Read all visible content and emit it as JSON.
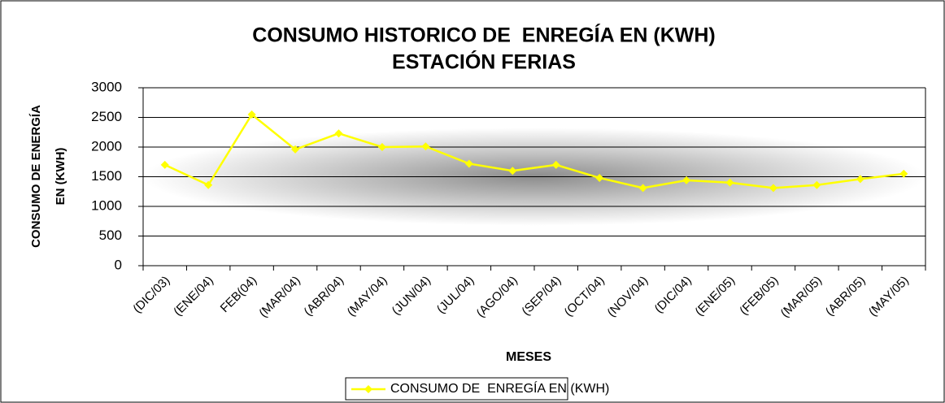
{
  "chart_data": {
    "type": "line",
    "title": [
      "CONSUMO HISTORICO DE  ENREGÍA EN (KWH)",
      "ESTACIÓN FERIAS"
    ],
    "y_label": [
      "CONSUMO DE ENERGÍA",
      "EN (KWH)"
    ],
    "x_label": "MESES",
    "categories": [
      "(DIC/03)",
      "(ENE/04)",
      "FEB(04)",
      "(MAR/04)",
      "(ABR/04)",
      "(MAY/04)",
      "(JUN/04)",
      "(JUL/04)",
      "(AGO/04)",
      "(SEP/04)",
      "(OCT/04)",
      "(NOV/04)",
      "(DIC/04)",
      "(ENE/05)",
      "(FEB/05)",
      "(MAR/05)",
      "(ABR/05)",
      "(MAY/05)"
    ],
    "series": [
      {
        "name": "CONSUMO DE  ENREGÍA EN (KWH)",
        "color": "#ffff00",
        "values": [
          1700,
          1360,
          2550,
          1960,
          2230,
          2000,
          2010,
          1720,
          1600,
          1700,
          1480,
          1310,
          1440,
          1400,
          1310,
          1360,
          1460,
          1550
        ]
      }
    ],
    "ylim": [
      0,
      3000
    ],
    "yticks": [
      0,
      500,
      1000,
      1500,
      2000,
      2500,
      3000
    ],
    "grid": true,
    "legend": "bottom"
  }
}
